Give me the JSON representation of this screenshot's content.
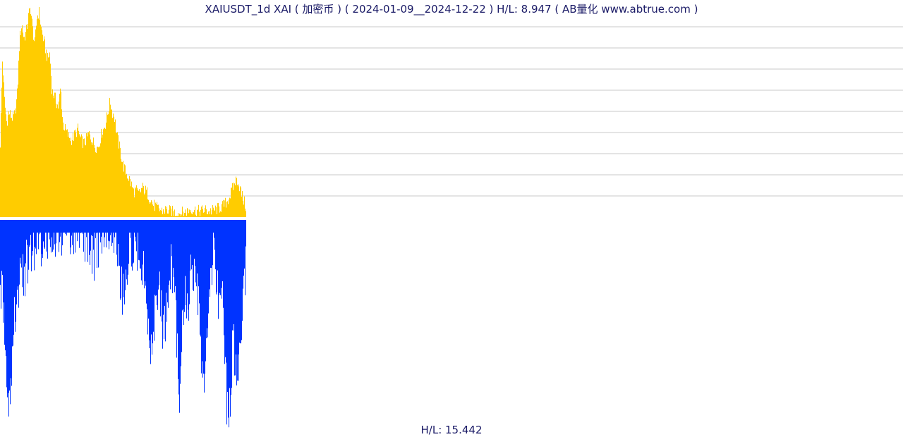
{
  "chart_data": {
    "type": "bar",
    "title": "XAIUSDT_1d XAI ( 加密币 ) ( 2024-01-09__2024-12-22 ) H/L: 8.947 ( AB量化  www.abtrue.com )",
    "footer": "H/L: 15.442",
    "x_range": [
      "2024-01-09",
      "2024-12-22"
    ],
    "grid": true,
    "colors": {
      "price": "#ffcc00",
      "volume": "#0033ff",
      "grid": "#c8c8c8",
      "text": "#1a1a66"
    },
    "series": [
      {
        "panel": "upper",
        "hl_ratio": 8.947,
        "values": [
          0.35,
          0.75,
          0.55,
          0.45,
          0.5,
          0.48,
          0.47,
          0.5,
          0.6,
          0.85,
          0.92,
          0.85,
          0.88,
          0.95,
          1.0,
          0.9,
          0.82,
          0.95,
          0.98,
          0.9,
          0.85,
          0.8,
          0.75,
          0.78,
          0.6,
          0.58,
          0.55,
          0.52,
          0.62,
          0.45,
          0.42,
          0.4,
          0.38,
          0.37,
          0.38,
          0.4,
          0.42,
          0.38,
          0.36,
          0.35,
          0.37,
          0.4,
          0.38,
          0.36,
          0.34,
          0.33,
          0.35,
          0.4,
          0.42,
          0.45,
          0.5,
          0.55,
          0.5,
          0.48,
          0.4,
          0.35,
          0.3,
          0.25,
          0.22,
          0.2,
          0.18,
          0.15,
          0.12,
          0.13,
          0.11,
          0.12,
          0.14,
          0.13,
          0.12,
          0.1,
          0.08,
          0.06,
          0.05,
          0.04,
          0.035,
          0.03,
          0.032,
          0.035,
          0.03,
          0.028,
          0.025,
          0.022,
          0.02,
          0.018,
          0.02,
          0.022,
          0.025,
          0.03,
          0.035,
          0.04,
          0.035,
          0.03,
          0.028,
          0.03,
          0.032,
          0.035,
          0.03,
          0.028,
          0.03,
          0.032,
          0.035,
          0.04,
          0.045,
          0.05,
          0.06,
          0.07,
          0.09,
          0.11,
          0.14,
          0.17,
          0.18,
          0.15,
          0.11,
          0.08,
          0.05
        ]
      },
      {
        "panel": "lower",
        "hl_ratio": 15.442,
        "values": [
          0.35,
          0.3,
          0.55,
          0.7,
          0.88,
          0.75,
          0.5,
          0.4,
          0.35,
          0.3,
          0.28,
          0.25,
          0.22,
          0.2,
          0.18,
          0.15,
          0.12,
          0.1,
          0.09,
          0.1,
          0.08,
          0.07,
          0.06,
          0.05,
          0.08,
          0.1,
          0.06,
          0.05,
          0.04,
          0.05,
          0.06,
          0.04,
          0.05,
          0.03,
          0.04,
          0.05,
          0.04,
          0.06,
          0.05,
          0.07,
          0.08,
          0.12,
          0.15,
          0.18,
          0.16,
          0.12,
          0.1,
          0.08,
          0.06,
          0.05,
          0.04,
          0.05,
          0.06,
          0.08,
          0.1,
          0.2,
          0.3,
          0.35,
          0.32,
          0.2,
          0.15,
          0.14,
          0.13,
          0.15,
          0.12,
          0.14,
          0.2,
          0.3,
          0.38,
          0.5,
          0.6,
          0.55,
          0.42,
          0.3,
          0.35,
          0.48,
          0.55,
          0.45,
          0.3,
          0.22,
          0.25,
          0.35,
          0.55,
          0.85,
          0.6,
          0.4,
          0.35,
          0.45,
          0.3,
          0.25,
          0.3,
          0.35,
          0.42,
          0.6,
          0.75,
          0.85,
          0.55,
          0.3,
          0.2,
          0.18,
          0.25,
          0.35,
          0.4,
          0.3,
          0.5,
          0.85,
          0.95,
          0.78,
          0.55,
          0.7,
          0.8,
          0.6,
          0.45,
          0.35,
          0.25
        ]
      }
    ]
  }
}
